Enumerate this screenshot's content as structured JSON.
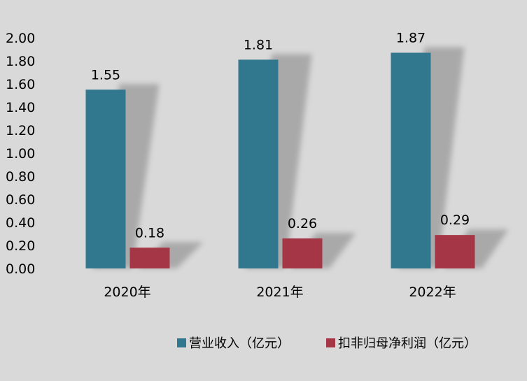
{
  "chart_data": {
    "type": "bar",
    "categories": [
      "2020年",
      "2021年",
      "2022年"
    ],
    "series": [
      {
        "name": "营业收入（亿元）",
        "values": [
          1.55,
          1.81,
          1.87
        ],
        "color": "#31788f"
      },
      {
        "name": "扣非归母净利润（亿元）",
        "values": [
          0.18,
          0.26,
          0.29
        ],
        "color": "#a53645"
      }
    ],
    "yticks": [
      "0.00",
      "0.20",
      "0.40",
      "0.60",
      "0.80",
      "1.00",
      "1.20",
      "1.40",
      "1.60",
      "1.80",
      "2.00"
    ],
    "ylim": [
      0,
      2.0
    ],
    "grid": false,
    "legend": "bottom",
    "background": "#d9d9d9"
  }
}
